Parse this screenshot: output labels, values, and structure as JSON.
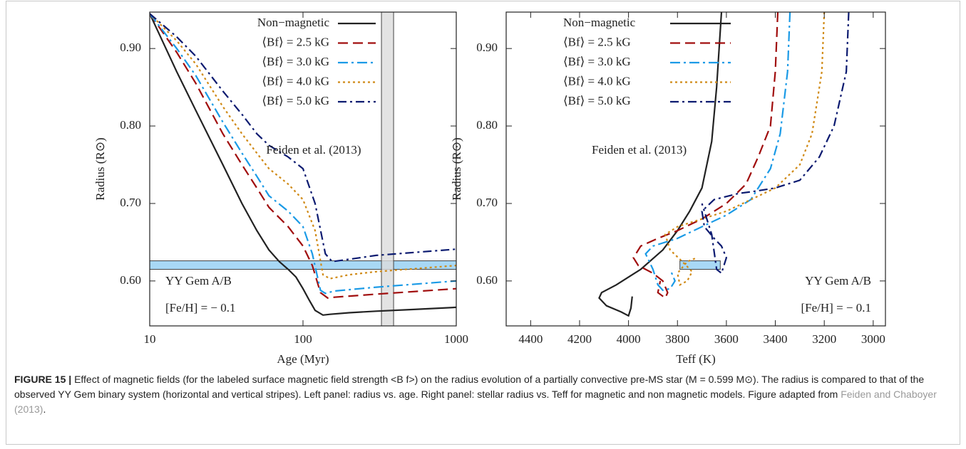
{
  "chart_data": [
    {
      "type": "line",
      "xlabel": "Age (Myr)",
      "ylabel": "Radius (R⊙)",
      "xscale": "log",
      "xlim": [
        10,
        1000
      ],
      "ylim": [
        0.542,
        0.947
      ],
      "xticks": [
        10,
        100,
        1000
      ],
      "yticks": [
        {
          "value": 0.6,
          "label": "0.60"
        },
        {
          "value": 0.7,
          "label": "0.70"
        },
        {
          "value": 0.8,
          "label": "0.80"
        },
        {
          "value": 0.9,
          "label": "0.90"
        }
      ],
      "legend": "upper right",
      "annotations": [
        "Feiden et al. (2013)",
        "YY Gem A/B",
        "[Fe/H] = − 0.1"
      ],
      "hspan": [
        0.615,
        0.626
      ],
      "hspan_color": "#a8d8f5",
      "vspan": [
        325,
        390
      ],
      "vspan_color": "#dcdcdc",
      "series": [
        {
          "name": "Non−magnetic",
          "color": "#222222",
          "linestyle": "solid",
          "x": [
            10,
            15,
            20,
            30,
            40,
            50,
            60,
            70,
            80,
            90,
            100,
            110,
            120,
            135,
            150,
            200,
            300,
            500,
            1000
          ],
          "y": [
            0.945,
            0.87,
            0.82,
            0.75,
            0.7,
            0.665,
            0.64,
            0.625,
            0.615,
            0.605,
            0.59,
            0.575,
            0.562,
            0.556,
            0.557,
            0.559,
            0.561,
            0.563,
            0.566
          ]
        },
        {
          "name": "⟨Bf⟩ = 2.5 kG",
          "color": "#a00d0d",
          "linestyle": "dashed",
          "x": [
            10,
            15,
            20,
            30,
            40,
            50,
            60,
            80,
            100,
            115,
            130,
            145,
            160,
            300,
            1000
          ],
          "y": [
            0.945,
            0.895,
            0.855,
            0.79,
            0.75,
            0.72,
            0.695,
            0.67,
            0.645,
            0.62,
            0.585,
            0.578,
            0.579,
            0.583,
            0.59
          ]
        },
        {
          "name": "⟨Bf⟩ = 3.0 kG",
          "color": "#1a9ae6",
          "linestyle": "dashdot",
          "x": [
            10,
            15,
            20,
            30,
            40,
            50,
            60,
            80,
            100,
            115,
            130,
            140,
            160,
            300,
            1000
          ],
          "y": [
            0.945,
            0.9,
            0.865,
            0.805,
            0.765,
            0.735,
            0.71,
            0.69,
            0.67,
            0.635,
            0.588,
            0.584,
            0.587,
            0.592,
            0.6
          ]
        },
        {
          "name": "⟨Bf⟩ = 4.0 kG",
          "color": "#d08a16",
          "linestyle": "dotted",
          "x": [
            10,
            15,
            20,
            30,
            40,
            50,
            60,
            80,
            100,
            120,
            135,
            150,
            200,
            300,
            1000
          ],
          "y": [
            0.945,
            0.91,
            0.88,
            0.825,
            0.79,
            0.765,
            0.745,
            0.725,
            0.705,
            0.665,
            0.608,
            0.603,
            0.608,
            0.612,
            0.62
          ]
        },
        {
          "name": "⟨Bf⟩ = 5.0 kG",
          "color": "#0b1a70",
          "linestyle": "dashdot2",
          "x": [
            10,
            15,
            20,
            30,
            40,
            50,
            60,
            80,
            100,
            120,
            140,
            155,
            200,
            300,
            1000
          ],
          "y": [
            0.945,
            0.915,
            0.89,
            0.845,
            0.815,
            0.79,
            0.775,
            0.76,
            0.745,
            0.7,
            0.635,
            0.625,
            0.628,
            0.633,
            0.641
          ]
        }
      ]
    },
    {
      "type": "line",
      "xlabel": "Teff (K)",
      "ylabel": "Radius (R⊙)",
      "xscale": "linear",
      "xlim": [
        4500,
        2950
      ],
      "ylim": [
        0.542,
        0.947
      ],
      "xticks": [
        4400,
        4200,
        4000,
        3800,
        3600,
        3400,
        3200,
        3000
      ],
      "yticks": [
        {
          "value": 0.6,
          "label": "0.60"
        },
        {
          "value": 0.7,
          "label": "0.70"
        },
        {
          "value": 0.8,
          "label": "0.80"
        },
        {
          "value": 0.9,
          "label": "0.90"
        }
      ],
      "legend": "upper left",
      "annotations": [
        "Feiden et al. (2013)",
        "YY Gem A/B",
        "[Fe/H] = − 0.1"
      ],
      "box": {
        "x": [
          3790,
          3625
        ],
        "y": [
          0.615,
          0.626
        ],
        "color": "#a8d8f5"
      },
      "series": [
        {
          "name": "Non−magnetic",
          "color": "#222222",
          "linestyle": "solid",
          "x": [
            3620,
            3640,
            3660,
            3700,
            3750,
            3800,
            3860,
            3950,
            4050,
            4110,
            4120,
            4090,
            4030,
            4000,
            3990,
            3985
          ],
          "y": [
            0.947,
            0.85,
            0.78,
            0.72,
            0.69,
            0.665,
            0.64,
            0.615,
            0.595,
            0.585,
            0.578,
            0.568,
            0.56,
            0.555,
            0.565,
            0.58
          ]
        },
        {
          "name": "⟨Bf⟩ = 2.5 kG",
          "color": "#a00d0d",
          "linestyle": "dashed",
          "x": [
            3390,
            3400,
            3420,
            3470,
            3520,
            3600,
            3700,
            3800,
            3880,
            3950,
            3980,
            3960,
            3900,
            3860,
            3840,
            3850,
            3880,
            3870
          ],
          "y": [
            0.947,
            0.87,
            0.8,
            0.76,
            0.725,
            0.7,
            0.68,
            0.665,
            0.655,
            0.645,
            0.63,
            0.62,
            0.61,
            0.6,
            0.585,
            0.578,
            0.585,
            0.6
          ]
        },
        {
          "name": "⟨Bf⟩ = 3.0 kG",
          "color": "#1a9ae6",
          "linestyle": "dashdot",
          "x": [
            3340,
            3350,
            3380,
            3420,
            3500,
            3600,
            3700,
            3800,
            3900,
            3930,
            3900,
            3880,
            3860,
            3830,
            3810,
            3830
          ],
          "y": [
            0.947,
            0.87,
            0.79,
            0.745,
            0.705,
            0.685,
            0.67,
            0.655,
            0.645,
            0.635,
            0.615,
            0.595,
            0.588,
            0.59,
            0.6,
            0.615
          ]
        },
        {
          "name": "⟨Bf⟩ = 4.0 kG",
          "color": "#d08a16",
          "linestyle": "dotted",
          "x": [
            3200,
            3210,
            3250,
            3300,
            3400,
            3500,
            3600,
            3700,
            3800,
            3850,
            3830,
            3780,
            3740,
            3760,
            3790,
            3800,
            3760,
            3720
          ],
          "y": [
            0.947,
            0.87,
            0.79,
            0.75,
            0.72,
            0.705,
            0.69,
            0.68,
            0.67,
            0.66,
            0.64,
            0.625,
            0.612,
            0.6,
            0.595,
            0.61,
            0.625,
            0.63
          ]
        },
        {
          "name": "⟨Bf⟩ = 5.0 kG",
          "color": "#0b1a70",
          "linestyle": "dashdot2",
          "x": [
            3100,
            3110,
            3160,
            3220,
            3300,
            3400,
            3500,
            3550,
            3650,
            3700,
            3690,
            3650,
            3620,
            3600,
            3620,
            3640,
            3660,
            3700
          ],
          "y": [
            0.947,
            0.87,
            0.8,
            0.76,
            0.73,
            0.72,
            0.715,
            0.713,
            0.705,
            0.69,
            0.67,
            0.655,
            0.645,
            0.63,
            0.61,
            0.615,
            0.66,
            0.7
          ]
        }
      ]
    }
  ],
  "caption": {
    "label": "FIGURE 15 |",
    "text": "Effect of magnetic fields (for the labeled surface magnetic field strength <B f>) on the radius evolution of a partially convective pre-MS star (M = 0.599 M⊙). The radius is compared to that of the observed YY Gem binary system (horizontal and vertical stripes). Left panel: radius vs. age. Right panel: stellar radius vs. Teff for magnetic and non magnetic models. Figure adapted from",
    "link": "Feiden and Chaboyer (2013)",
    "end": "."
  }
}
